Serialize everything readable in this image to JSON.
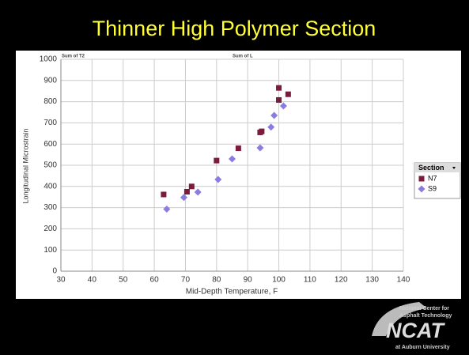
{
  "chart_data": {
    "type": "scatter",
    "title": "Thinner High Polymer Section",
    "annotations": [
      "Sum of T2",
      "Sum of L"
    ],
    "xlabel": "Mid-Depth Temperature, F",
    "ylabel": "Longitudinal Microstrain",
    "legend_title": "Section",
    "legend_position": "right",
    "grid": true,
    "xlim": [
      30,
      140
    ],
    "xticks": [
      30,
      40,
      50,
      60,
      70,
      80,
      90,
      100,
      110,
      120,
      130,
      140
    ],
    "ylim": [
      0,
      1000
    ],
    "yticks": [
      0,
      100,
      200,
      300,
      400,
      500,
      600,
      700,
      800,
      900,
      1000
    ],
    "series": [
      {
        "name": "N7",
        "color": "#7b1c3c",
        "marker": "square",
        "x": [
          63,
          70.5,
          72,
          80,
          87,
          94,
          94.5,
          100,
          100,
          103
        ],
        "values": [
          362,
          375,
          400,
          522,
          580,
          655,
          660,
          865,
          808,
          835
        ]
      },
      {
        "name": "S9",
        "color": "#8a7de0",
        "marker": "diamond",
        "x": [
          64,
          69.5,
          74,
          80.5,
          85,
          94,
          97.5,
          98.5,
          101.5
        ],
        "values": [
          293,
          348,
          373,
          433,
          530,
          582,
          680,
          735,
          780
        ]
      }
    ]
  },
  "logo": {
    "lines": [
      "National Center for",
      "Asphalt Technology"
    ],
    "name": "NCAT",
    "affiliation": "at Auburn University"
  }
}
